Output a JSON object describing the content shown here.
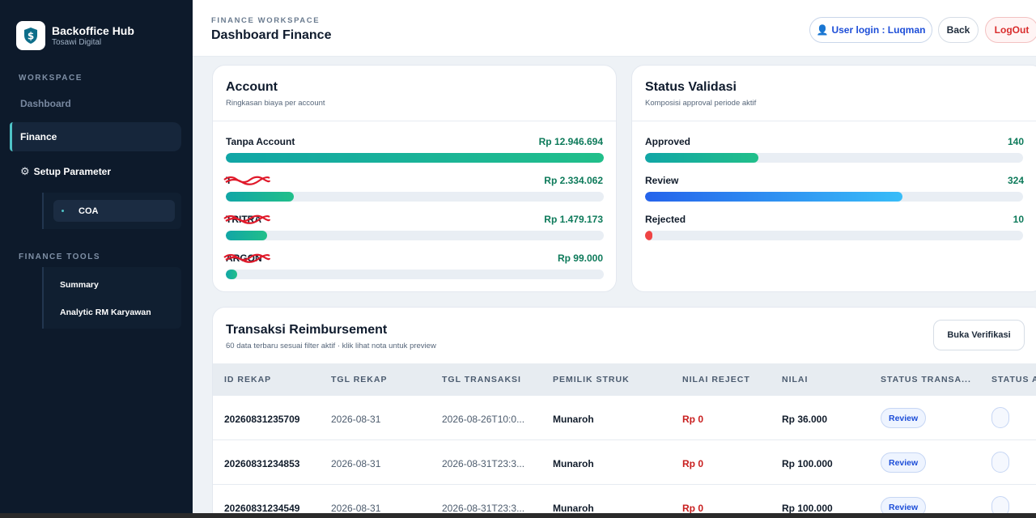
{
  "brand": {
    "title": "Backoffice Hub",
    "subtitle": "Tosawi Digital",
    "logo_icon": "dollar-shield-icon"
  },
  "sidebar": {
    "workspace_label": "WORKSPACE",
    "items": [
      {
        "label": "Dashboard"
      },
      {
        "label": "Finance",
        "active": true
      },
      {
        "label": "Setup Parameter",
        "icon": "gear-icon"
      }
    ],
    "submenu": [
      {
        "label": "COA"
      }
    ],
    "tools_label": "FINANCE TOOLS",
    "tools": [
      {
        "label": "Summary"
      },
      {
        "label": "Analytic RM Karyawan"
      }
    ]
  },
  "header": {
    "eyebrow": "FINANCE WORKSPACE",
    "title": "Dashboard Finance",
    "user_button": "User login : Luqman",
    "back_button": "Back",
    "logout_button": "LogOut"
  },
  "account_card": {
    "title": "Account",
    "subtitle": "Ringkasan biaya per account",
    "rows": [
      {
        "label": "Tanpa Account",
        "value": "Rp 12.946.694",
        "fraction": 1.0
      },
      {
        "label": "T",
        "value": "Rp 2.334.062",
        "fraction": 0.18,
        "redacted": true
      },
      {
        "label": "TRITRA",
        "value": "Rp 1.479.173",
        "fraction": 0.11,
        "redacted": true
      },
      {
        "label": "ARGON",
        "value": "Rp 99.000",
        "fraction": 0.03,
        "redacted": true
      }
    ]
  },
  "validation_card": {
    "title": "Status Validasi",
    "subtitle": "Komposisi approval periode aktif",
    "rows": [
      {
        "label": "Approved",
        "value": "140",
        "fraction": 0.3,
        "color": "teal"
      },
      {
        "label": "Review",
        "value": "324",
        "fraction": 0.68,
        "color": "blue"
      },
      {
        "label": "Rejected",
        "value": "10",
        "fraction": 0.02,
        "color": "red"
      }
    ]
  },
  "table": {
    "title": "Transaksi Reimbursement",
    "subtitle": "60 data terbaru sesuai filter aktif · klik lihat nota untuk preview",
    "verify_button": "Buka Verifikasi",
    "columns": [
      "ID REKAP",
      "TGL REKAP",
      "TGL TRANSAKSI",
      "PEMILIK STRUK",
      "NILAI REJECT",
      "NILAI",
      "STATUS TRANSA...",
      "STATUS AI"
    ],
    "rows": [
      {
        "id": "20260831235709",
        "tgl_rekap": "2026-08-31",
        "tgl_transaksi": "2026-08-26T10:0...",
        "pemilik": "Munaroh",
        "reject": "Rp 0",
        "nilai": "Rp 36.000",
        "status": "Review"
      },
      {
        "id": "20260831234853",
        "tgl_rekap": "2026-08-31",
        "tgl_transaksi": "2026-08-31T23:3...",
        "pemilik": "Munaroh",
        "reject": "Rp 0",
        "nilai": "Rp 100.000",
        "status": "Review"
      },
      {
        "id": "20260831234549",
        "tgl_rekap": "2026-08-31",
        "tgl_transaksi": "2026-08-31T23:3...",
        "pemilik": "Munaroh",
        "reject": "Rp 0",
        "nilai": "Rp 100.000",
        "status": "Review"
      }
    ]
  },
  "colors": {
    "sidebar_bg": "#0d1a2b",
    "accent_teal": "#11a6a6",
    "accent_blue": "#2563eb",
    "danger": "#d92d2d",
    "money_green": "#0d7a5a"
  }
}
